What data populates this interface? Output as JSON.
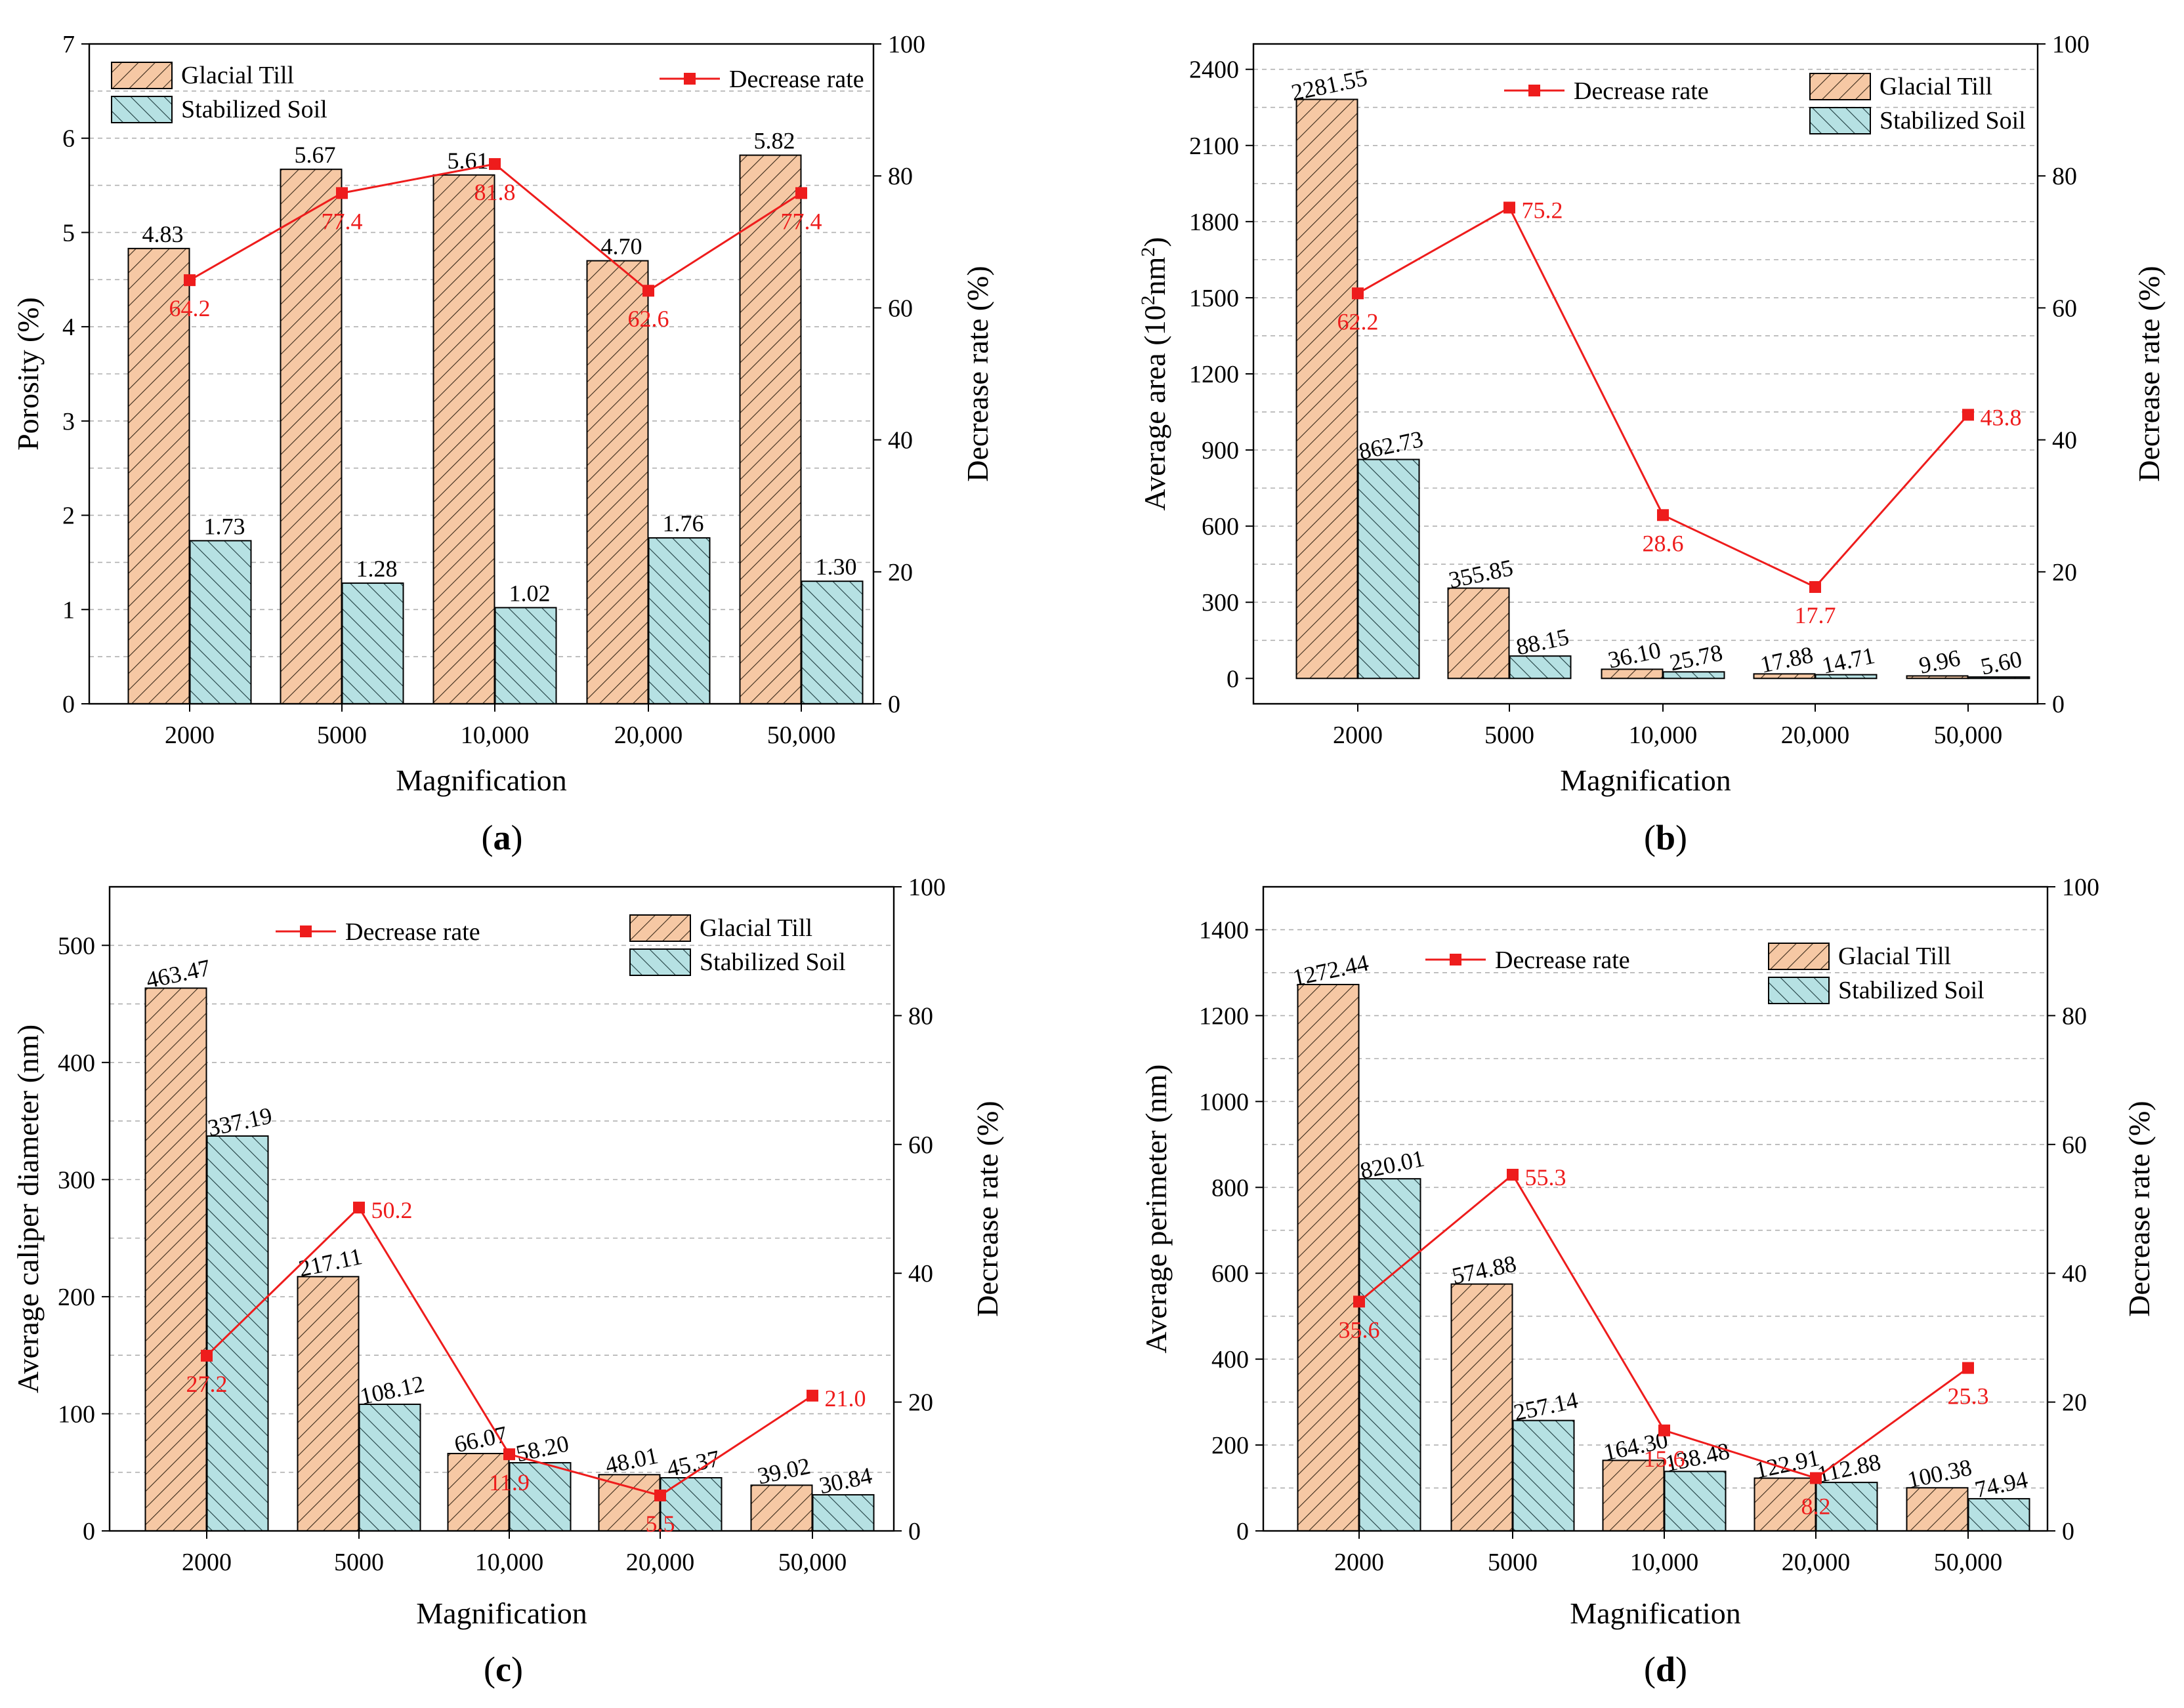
{
  "colors": {
    "glacial_fill": "#f6c8a4",
    "glacial_hatch": "#3a2a1a",
    "stabilized_fill": "#b6e1e3",
    "stabilized_hatch": "#1f3d40",
    "line": "#ee1c1c",
    "grid": "#b0b0b0",
    "axis": "#000000"
  },
  "chart_data": [
    {
      "panel_label": "a",
      "type": "bar",
      "title": "",
      "xlabel": "Magnification",
      "ylabel": "Porosity (%)",
      "y2label": "Decrease rate (%)",
      "categories": [
        "2000",
        "5000",
        "10,000",
        "20,000",
        "50,000"
      ],
      "ylim": [
        0,
        7
      ],
      "yticks": [
        0,
        1,
        2,
        3,
        4,
        5,
        6,
        7
      ],
      "ygrid": [
        0.5,
        1,
        1.5,
        2,
        2.5,
        3,
        3.5,
        4,
        4.5,
        5,
        5.5,
        6,
        6.5
      ],
      "y2lim": [
        0,
        100
      ],
      "y2ticks": [
        0,
        20,
        40,
        60,
        80,
        100
      ],
      "series": [
        {
          "name": "Glacial Till",
          "kind": "bar",
          "values": [
            4.83,
            5.67,
            5.61,
            4.7,
            5.82
          ],
          "labels": [
            "4.83",
            "5.67",
            "5.61",
            "4.70",
            "5.82"
          ]
        },
        {
          "name": "Stabilized Soil",
          "kind": "bar",
          "values": [
            1.73,
            1.28,
            1.02,
            1.76,
            1.3
          ],
          "labels": [
            "1.73",
            "1.28",
            "1.02",
            "1.76",
            "1.30"
          ]
        },
        {
          "name": "Decrease rate",
          "kind": "line",
          "axis": "right",
          "values": [
            64.2,
            77.4,
            81.8,
            62.6,
            77.4
          ],
          "labels": [
            "64.2",
            "77.4",
            "81.8",
            "62.6",
            "77.4"
          ]
        }
      ],
      "legend": {
        "bars_position": "top-left",
        "line_position": "top-right"
      }
    },
    {
      "panel_label": "b",
      "type": "bar",
      "title": "",
      "xlabel": "Magnification",
      "ylabel_main": "Average area (10",
      "ylabel_sup1": "2",
      "ylabel_mid": "nm",
      "ylabel_sup2": "2",
      "ylabel_end": ")",
      "y2label": "Decrease rate (%)",
      "categories": [
        "2000",
        "5000",
        "10,000",
        "20,000",
        "50,000"
      ],
      "ylim": [
        -100,
        2500
      ],
      "yticks": [
        0,
        300,
        600,
        900,
        1200,
        1500,
        1800,
        2100,
        2400
      ],
      "ygrid": [
        150,
        300,
        450,
        600,
        750,
        900,
        1050,
        1200,
        1350,
        1500,
        1650,
        1800,
        1950,
        2100,
        2250,
        2400
      ],
      "y2lim": [
        0,
        100
      ],
      "y2ticks": [
        0,
        20,
        40,
        60,
        80,
        100
      ],
      "series": [
        {
          "name": "Glacial Till",
          "kind": "bar",
          "values": [
            2281.55,
            355.85,
            36.1,
            17.88,
            9.96
          ],
          "labels": [
            "2281.55",
            "355.85",
            "36.10",
            "17.88",
            "9.96"
          ]
        },
        {
          "name": "Stabilized Soil",
          "kind": "bar",
          "values": [
            862.73,
            88.15,
            25.78,
            14.71,
            5.6
          ],
          "labels": [
            "862.73",
            "88.15",
            "25.78",
            "14.71",
            "5.60"
          ]
        },
        {
          "name": "Decrease rate",
          "kind": "line",
          "axis": "right",
          "values": [
            62.2,
            75.2,
            28.6,
            17.7,
            43.8
          ],
          "labels": [
            "62.2",
            "75.2",
            "28.6",
            "17.7",
            "43.8"
          ]
        }
      ],
      "legend": {
        "bars_position": "top-right",
        "line_position": "top-center"
      }
    },
    {
      "panel_label": "c",
      "type": "bar",
      "title": "",
      "xlabel": "Magnification",
      "ylabel": "Average caliper diameter (nm)",
      "y2label": "Decrease rate (%)",
      "categories": [
        "2000",
        "5000",
        "10,000",
        "20,000",
        "50,000"
      ],
      "ylim": [
        0,
        550
      ],
      "yticks": [
        0,
        100,
        200,
        300,
        400,
        500
      ],
      "ygrid": [
        50,
        100,
        150,
        200,
        250,
        300,
        350,
        400,
        450,
        500
      ],
      "y2lim": [
        0,
        100
      ],
      "y2ticks": [
        0,
        20,
        40,
        60,
        80,
        100
      ],
      "series": [
        {
          "name": "Glacial Till",
          "kind": "bar",
          "values": [
            463.47,
            217.11,
            66.07,
            48.01,
            39.02
          ],
          "labels": [
            "463.47",
            "217.11",
            "66.07",
            "48.01",
            "39.02"
          ]
        },
        {
          "name": "Stabilized Soil",
          "kind": "bar",
          "values": [
            337.19,
            108.12,
            58.2,
            45.37,
            30.84
          ],
          "labels": [
            "337.19",
            "108.12",
            "58.20",
            "45.37",
            "30.84"
          ]
        },
        {
          "name": "Decrease rate",
          "kind": "line",
          "axis": "right",
          "values": [
            27.2,
            50.2,
            11.9,
            5.5,
            21.0
          ],
          "labels": [
            "27.2",
            "50.2",
            "11.9",
            "5.5",
            "21.0"
          ]
        }
      ],
      "legend": {
        "bars_position": "top-right",
        "line_position": "top-center"
      }
    },
    {
      "panel_label": "d",
      "type": "bar",
      "title": "",
      "xlabel": "Magnification",
      "ylabel": "Average perimeter (nm)",
      "y2label": "Decrease rate (%)",
      "categories": [
        "2000",
        "5000",
        "10,000",
        "20,000",
        "50,000"
      ],
      "ylim": [
        0,
        1500
      ],
      "yticks": [
        0,
        200,
        400,
        600,
        800,
        1000,
        1200,
        1400
      ],
      "ygrid": [
        100,
        200,
        300,
        400,
        500,
        600,
        700,
        800,
        900,
        1000,
        1100,
        1200,
        1300,
        1400
      ],
      "y2lim": [
        0,
        100
      ],
      "y2ticks": [
        0,
        20,
        40,
        60,
        80,
        100
      ],
      "series": [
        {
          "name": "Glacial Till",
          "kind": "bar",
          "values": [
            1272.44,
            574.88,
            164.3,
            122.91,
            100.38
          ],
          "labels": [
            "1272.44",
            "574.88",
            "164.30",
            "122.91",
            "100.38"
          ]
        },
        {
          "name": "Stabilized Soil",
          "kind": "bar",
          "values": [
            820.01,
            257.14,
            138.48,
            112.88,
            74.94
          ],
          "labels": [
            "820.01",
            "257.14",
            "138.48",
            "112.88",
            "74.94"
          ]
        },
        {
          "name": "Decrease rate",
          "kind": "line",
          "axis": "right",
          "values": [
            35.6,
            55.3,
            15.6,
            8.2,
            25.3
          ],
          "labels": [
            "35.6",
            "55.3",
            "15.6",
            "8.2",
            "25.3"
          ]
        }
      ],
      "legend": {
        "bars_position": "top-right",
        "line_position": "top-center"
      }
    }
  ]
}
